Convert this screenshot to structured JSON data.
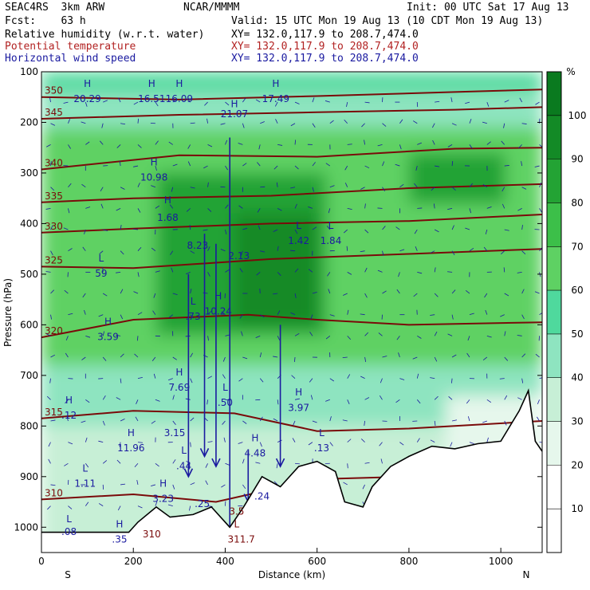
{
  "header": {
    "model": "SEAC4RS  3km ARW",
    "producer": "NCAR/MMMM",
    "init": "Init: 00 UTC Sat 17 Aug 13",
    "fcst": "Fcst:    63 h",
    "valid": "Valid: 15 UTC Mon 19 Aug 13 (10 CDT Mon 19 Aug 13)",
    "field1": "Relative humidity (w.r.t. water)",
    "field1_xy": "XY= 132.0,117.9 to 208.7,474.0",
    "field2": "Potential temperature",
    "field2_xy": "XY= 132.0,117.9 to 208.7,474.0",
    "field3": "Horizontal wind speed",
    "field3_xy": "XY= 132.0,117.9 to 208.7,474.0"
  },
  "colors": {
    "theta": "#7a0a0a",
    "wind": "#1a1aa0",
    "terrain": "#000000"
  },
  "chart_data": {
    "type": "heatmap",
    "xlabel": "Distance (km)",
    "ylabel": "Pressure (hPa)",
    "xlim": [
      0,
      1090
    ],
    "ylim": [
      1050,
      100
    ],
    "x_ticks": [
      "0",
      "200",
      "400",
      "600",
      "800",
      "1000"
    ],
    "x_tick_values": [
      0,
      200,
      400,
      600,
      800,
      1000
    ],
    "y_ticks": [
      "100",
      "200",
      "300",
      "400",
      "500",
      "600",
      "700",
      "800",
      "900",
      "1000"
    ],
    "y_tick_values": [
      100,
      200,
      300,
      400,
      500,
      600,
      700,
      800,
      900,
      1000
    ],
    "x_end_labels": {
      "left": "S",
      "right": "N"
    },
    "colorbar": {
      "unit": "%",
      "levels": [
        10,
        20,
        30,
        40,
        50,
        60,
        70,
        80,
        90,
        100
      ],
      "colors": [
        "#ffffff",
        "#ffffff",
        "#e6f7ec",
        "#c7efd6",
        "#8ee4c0",
        "#4fd99d",
        "#5ed163",
        "#3cbf49",
        "#23a334",
        "#138a26",
        "#0a7a1f"
      ]
    },
    "humidity_regions": [
      {
        "x0": 0,
        "x1": 1090,
        "p0": 100,
        "p1": 140,
        "rh": 55
      },
      {
        "x0": 0,
        "x1": 1090,
        "p0": 140,
        "p1": 210,
        "rh": 45
      },
      {
        "x0": 0,
        "x1": 1090,
        "p0": 210,
        "p1": 680,
        "rh": 65
      },
      {
        "x0": 0,
        "x1": 1090,
        "p0": 680,
        "p1": 800,
        "rh": 45
      },
      {
        "x0": 0,
        "x1": 1090,
        "p0": 800,
        "p1": 1050,
        "rh": 35
      },
      {
        "x0": 880,
        "x1": 1090,
        "p0": 740,
        "p1": 1050,
        "rh": 25
      },
      {
        "x0": 250,
        "x1": 620,
        "p0": 300,
        "p1": 620,
        "rh": 85
      },
      {
        "x0": 420,
        "x1": 600,
        "p0": 380,
        "p1": 600,
        "rh": 95
      },
      {
        "x0": 800,
        "x1": 1010,
        "p0": 260,
        "p1": 360,
        "rh": 82
      }
    ],
    "theta_contours": [
      {
        "label": "350",
        "points": [
          [
            0,
            150
          ],
          [
            300,
            155
          ],
          [
            600,
            148
          ],
          [
            900,
            140
          ],
          [
            1090,
            135
          ]
        ]
      },
      {
        "label": "345",
        "points": [
          [
            0,
            193
          ],
          [
            300,
            185
          ],
          [
            600,
            180
          ],
          [
            900,
            175
          ],
          [
            1090,
            170
          ]
        ]
      },
      {
        "label": "340",
        "points": [
          [
            0,
            293
          ],
          [
            300,
            265
          ],
          [
            600,
            268
          ],
          [
            900,
            252
          ],
          [
            1090,
            250
          ]
        ]
      },
      {
        "label": "335",
        "points": [
          [
            0,
            358
          ],
          [
            200,
            350
          ],
          [
            500,
            345
          ],
          [
            800,
            330
          ],
          [
            1090,
            322
          ]
        ]
      },
      {
        "label": "330",
        "points": [
          [
            0,
            418
          ],
          [
            200,
            410
          ],
          [
            500,
            400
          ],
          [
            800,
            395
          ],
          [
            1090,
            382
          ]
        ]
      },
      {
        "label": "325",
        "points": [
          [
            0,
            485
          ],
          [
            200,
            488
          ],
          [
            500,
            470
          ],
          [
            800,
            460
          ],
          [
            1090,
            450
          ]
        ]
      },
      {
        "label": "320",
        "points": [
          [
            0,
            625
          ],
          [
            200,
            590
          ],
          [
            450,
            580
          ],
          [
            600,
            590
          ],
          [
            800,
            600
          ],
          [
            1090,
            595
          ]
        ]
      },
      {
        "label": "315",
        "points": [
          [
            0,
            785
          ],
          [
            200,
            770
          ],
          [
            420,
            775
          ],
          [
            600,
            810
          ],
          [
            800,
            805
          ],
          [
            1090,
            790
          ]
        ]
      },
      {
        "label": "310",
        "points": [
          [
            0,
            945
          ],
          [
            200,
            935
          ],
          [
            380,
            950
          ],
          [
            600,
            905
          ],
          [
            800,
            900
          ],
          [
            1090,
            880
          ]
        ]
      }
    ],
    "terrain": [
      [
        0,
        1010
      ],
      [
        190,
        1010
      ],
      [
        210,
        990
      ],
      [
        250,
        960
      ],
      [
        280,
        980
      ],
      [
        330,
        975
      ],
      [
        370,
        960
      ],
      [
        410,
        1000
      ],
      [
        440,
        960
      ],
      [
        480,
        900
      ],
      [
        520,
        920
      ],
      [
        560,
        880
      ],
      [
        600,
        870
      ],
      [
        640,
        890
      ],
      [
        660,
        950
      ],
      [
        700,
        960
      ],
      [
        720,
        920
      ],
      [
        760,
        880
      ],
      [
        800,
        860
      ],
      [
        850,
        840
      ],
      [
        900,
        845
      ],
      [
        950,
        835
      ],
      [
        1000,
        830
      ],
      [
        1040,
        770
      ],
      [
        1060,
        730
      ],
      [
        1075,
        830
      ],
      [
        1090,
        850
      ]
    ],
    "annotations": [
      {
        "x": 100,
        "p": 130,
        "text": "H",
        "color": "blue"
      },
      {
        "x": 100,
        "p": 160,
        "text": "20.29",
        "color": "blue"
      },
      {
        "x": 240,
        "p": 130,
        "text": "H",
        "color": "blue"
      },
      {
        "x": 240,
        "p": 160,
        "text": "16.51",
        "color": "blue"
      },
      {
        "x": 300,
        "p": 130,
        "text": "H",
        "color": "blue"
      },
      {
        "x": 300,
        "p": 160,
        "text": "16.09",
        "color": "blue"
      },
      {
        "x": 420,
        "p": 170,
        "text": "H",
        "color": "blue"
      },
      {
        "x": 420,
        "p": 190,
        "text": "21.07",
        "color": "blue"
      },
      {
        "x": 510,
        "p": 130,
        "text": "H",
        "color": "blue"
      },
      {
        "x": 510,
        "p": 160,
        "text": "17.49",
        "color": "blue"
      },
      {
        "x": 245,
        "p": 285,
        "text": "H",
        "color": "blue"
      },
      {
        "x": 245,
        "p": 315,
        "text": "10.98",
        "color": "blue"
      },
      {
        "x": 275,
        "p": 360,
        "text": "H",
        "color": "blue"
      },
      {
        "x": 275,
        "p": 395,
        "text": "1.68",
        "color": "blue"
      },
      {
        "x": 340,
        "p": 450,
        "text": "8.23",
        "color": "blue"
      },
      {
        "x": 430,
        "p": 470,
        "text": "2.13",
        "color": "blue"
      },
      {
        "x": 130,
        "p": 475,
        "text": "L",
        "color": "blue"
      },
      {
        "x": 130,
        "p": 505,
        "text": "59",
        "color": "blue"
      },
      {
        "x": 385,
        "p": 550,
        "text": "H",
        "color": "blue"
      },
      {
        "x": 385,
        "p": 580,
        "text": "10.24",
        "color": "blue"
      },
      {
        "x": 330,
        "p": 560,
        "text": "L",
        "color": "blue"
      },
      {
        "x": 330,
        "p": 590,
        "text": ".73",
        "color": "blue"
      },
      {
        "x": 145,
        "p": 600,
        "text": "H",
        "color": "blue"
      },
      {
        "x": 145,
        "p": 630,
        "text": "3.59",
        "color": "blue"
      },
      {
        "x": 560,
        "p": 410,
        "text": "L",
        "color": "blue"
      },
      {
        "x": 560,
        "p": 440,
        "text": "1.42",
        "color": "blue"
      },
      {
        "x": 630,
        "p": 410,
        "text": "L",
        "color": "blue"
      },
      {
        "x": 630,
        "p": 440,
        "text": "1.84",
        "color": "blue"
      },
      {
        "x": 300,
        "p": 700,
        "text": "H",
        "color": "blue"
      },
      {
        "x": 300,
        "p": 730,
        "text": "7.69",
        "color": "blue"
      },
      {
        "x": 400,
        "p": 730,
        "text": "L",
        "color": "blue"
      },
      {
        "x": 400,
        "p": 760,
        "text": ".50",
        "color": "blue"
      },
      {
        "x": 560,
        "p": 740,
        "text": "H",
        "color": "blue"
      },
      {
        "x": 560,
        "p": 770,
        "text": "3.97",
        "color": "blue"
      },
      {
        "x": 60,
        "p": 755,
        "text": "H",
        "color": "blue"
      },
      {
        "x": 60,
        "p": 785,
        "text": ".12",
        "color": "blue"
      },
      {
        "x": 195,
        "p": 820,
        "text": "H",
        "color": "blue"
      },
      {
        "x": 195,
        "p": 850,
        "text": "11.96",
        "color": "blue"
      },
      {
        "x": 290,
        "p": 820,
        "text": "3.15",
        "color": "blue"
      },
      {
        "x": 465,
        "p": 830,
        "text": "H",
        "color": "blue"
      },
      {
        "x": 465,
        "p": 860,
        "text": "4.48",
        "color": "blue"
      },
      {
        "x": 610,
        "p": 820,
        "text": "L",
        "color": "blue"
      },
      {
        "x": 610,
        "p": 850,
        "text": ".13",
        "color": "blue"
      },
      {
        "x": 310,
        "p": 855,
        "text": "L",
        "color": "blue"
      },
      {
        "x": 310,
        "p": 885,
        "text": ".44",
        "color": "blue"
      },
      {
        "x": 95,
        "p": 890,
        "text": "L",
        "color": "blue"
      },
      {
        "x": 95,
        "p": 920,
        "text": "1.11",
        "color": "blue"
      },
      {
        "x": 265,
        "p": 920,
        "text": "H",
        "color": "blue"
      },
      {
        "x": 265,
        "p": 950,
        "text": "3.23",
        "color": "blue"
      },
      {
        "x": 350,
        "p": 960,
        "text": ".25",
        "color": "blue"
      },
      {
        "x": 480,
        "p": 945,
        "text": ".24",
        "color": "blue"
      },
      {
        "x": 60,
        "p": 990,
        "text": "L",
        "color": "blue"
      },
      {
        "x": 60,
        "p": 1015,
        "text": ".08",
        "color": "blue"
      },
      {
        "x": 170,
        "p": 1000,
        "text": "H",
        "color": "blue"
      },
      {
        "x": 170,
        "p": 1030,
        "text": ".35",
        "color": "blue"
      },
      {
        "x": 425,
        "p": 975,
        "text": "3.5",
        "color": "red"
      },
      {
        "x": 425,
        "p": 1000,
        "text": "L",
        "color": "red"
      },
      {
        "x": 435,
        "p": 1030,
        "text": "311.7",
        "color": "red"
      },
      {
        "x": 240,
        "p": 1020,
        "text": "310",
        "color": "red"
      }
    ],
    "wind_streaks": [
      {
        "x": 410,
        "p_top": 230,
        "p_bottom": 1040
      },
      {
        "x": 355,
        "p_top": 420,
        "p_bottom": 860
      },
      {
        "x": 380,
        "p_top": 440,
        "p_bottom": 880
      },
      {
        "x": 320,
        "p_top": 500,
        "p_bottom": 900
      },
      {
        "x": 520,
        "p_top": 600,
        "p_bottom": 880
      },
      {
        "x": 450,
        "p_top": 850,
        "p_bottom": 950
      }
    ]
  }
}
